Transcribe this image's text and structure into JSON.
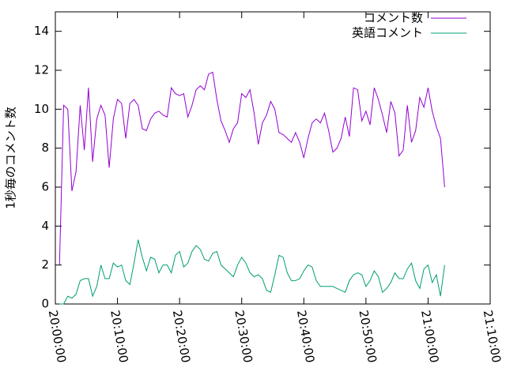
{
  "chart_data": {
    "type": "line",
    "ylabel": "1秒毎のコメント数",
    "x": [
      "20:00:40",
      "20:01:20",
      "20:02:00",
      "20:02:40",
      "20:03:20",
      "20:04:00",
      "20:04:40",
      "20:05:20",
      "20:06:00",
      "20:06:40",
      "20:07:20",
      "20:08:00",
      "20:08:40",
      "20:09:20",
      "20:10:00",
      "20:10:40",
      "20:11:20",
      "20:12:00",
      "20:12:40",
      "20:13:20",
      "20:14:00",
      "20:14:40",
      "20:15:20",
      "20:16:00",
      "20:16:40",
      "20:17:20",
      "20:18:00",
      "20:18:40",
      "20:19:20",
      "20:20:00",
      "20:20:40",
      "20:21:20",
      "20:22:00",
      "20:22:40",
      "20:23:20",
      "20:24:00",
      "20:24:40",
      "20:25:20",
      "20:26:00",
      "20:26:40",
      "20:27:20",
      "20:28:00",
      "20:28:40",
      "20:29:20",
      "20:30:00",
      "20:30:40",
      "20:31:20",
      "20:32:00",
      "20:32:40",
      "20:33:20",
      "20:34:00",
      "20:34:40",
      "20:35:20",
      "20:36:00",
      "20:36:40",
      "20:37:20",
      "20:38:00",
      "20:38:40",
      "20:39:20",
      "20:40:00",
      "20:40:40",
      "20:41:20",
      "20:42:00",
      "20:42:40",
      "20:43:20",
      "20:44:00",
      "20:44:40",
      "20:45:20",
      "20:46:00",
      "20:46:40",
      "20:47:20",
      "20:48:00",
      "20:48:40",
      "20:49:20",
      "20:50:00",
      "20:50:40",
      "20:51:20",
      "20:52:00",
      "20:52:40",
      "20:53:20",
      "20:54:00",
      "20:54:40",
      "20:55:20",
      "20:56:00",
      "20:56:40",
      "20:57:20",
      "20:58:00",
      "20:58:40",
      "20:59:20",
      "21:00:00",
      "21:00:40",
      "21:01:20",
      "21:02:00",
      "21:02:40"
    ],
    "series": [
      {
        "name": "コメント数",
        "color": "#9400d3",
        "values": [
          2,
          10.2,
          10,
          5.8,
          6.8,
          10.2,
          7.9,
          11.1,
          7.3,
          9.5,
          10.2,
          9.7,
          7,
          9.5,
          10.5,
          10.3,
          8.5,
          10.3,
          10.5,
          10.2,
          9,
          8.9,
          9.5,
          9.8,
          9.9,
          9.7,
          9.6,
          11.1,
          10.8,
          10.7,
          10.8,
          9.6,
          10.2,
          11,
          11.2,
          11,
          11.8,
          11.9,
          10.5,
          9.4,
          8.9,
          8.3,
          9,
          9.3,
          10.8,
          10.6,
          11,
          9.8,
          8.2,
          9.3,
          9.7,
          10.4,
          10,
          8.8,
          8.7,
          8.5,
          8.3,
          8.8,
          8.3,
          7.5,
          8.5,
          9.3,
          9.5,
          9.3,
          9.8,
          8.9,
          7.8,
          8,
          8.5,
          9.6,
          8.6,
          11.1,
          11,
          9.4,
          9.9,
          9.2,
          11.1,
          10.5,
          9.7,
          8.8,
          10.4,
          9.8,
          7.6,
          7.9,
          10.2,
          8.3,
          8.9,
          10.6,
          10.1,
          11.1,
          9.9,
          9.1,
          8.5,
          6
        ]
      },
      {
        "name": "英語コメント",
        "color": "#009e73",
        "values": [
          0,
          0,
          0.4,
          0.3,
          0.5,
          1.2,
          1.3,
          1.3,
          0.4,
          0.9,
          2,
          1.3,
          1.3,
          2.1,
          1.9,
          2,
          1.2,
          1,
          2.1,
          3.3,
          2.4,
          1.7,
          2.4,
          2.3,
          1.6,
          2,
          2,
          1.6,
          2.5,
          2.7,
          1.9,
          2.1,
          2.7,
          3,
          2.8,
          2.3,
          2.2,
          2.6,
          2.7,
          2,
          1.8,
          1.6,
          1.4,
          2,
          2.4,
          2.1,
          1.6,
          1.4,
          1.5,
          1.3,
          0.7,
          0.6,
          1.5,
          2.5,
          2.4,
          1.6,
          1.2,
          1.2,
          1.3,
          1.7,
          2,
          1.9,
          1.2,
          0.9,
          0.9,
          0.9,
          0.9,
          0.8,
          0.7,
          0.6,
          1.2,
          1.5,
          1.6,
          1.5,
          0.9,
          1.2,
          1.7,
          1.4,
          0.6,
          0.8,
          1.1,
          1.6,
          1.3,
          1.3,
          1.8,
          2.1,
          1.2,
          0.8,
          1.8,
          2,
          1.1,
          1.5,
          0.4,
          2
        ]
      }
    ],
    "xlim": [
      "20:00:00",
      "21:10:00"
    ],
    "xticks": [
      "20:00:00",
      "20:10:00",
      "20:20:00",
      "20:30:00",
      "20:40:00",
      "20:50:00",
      "21:00:00",
      "21:10:00"
    ],
    "ylim": [
      0,
      15
    ],
    "yticks": [
      0,
      2,
      4,
      6,
      8,
      10,
      12,
      14
    ],
    "legend": "top-right"
  }
}
